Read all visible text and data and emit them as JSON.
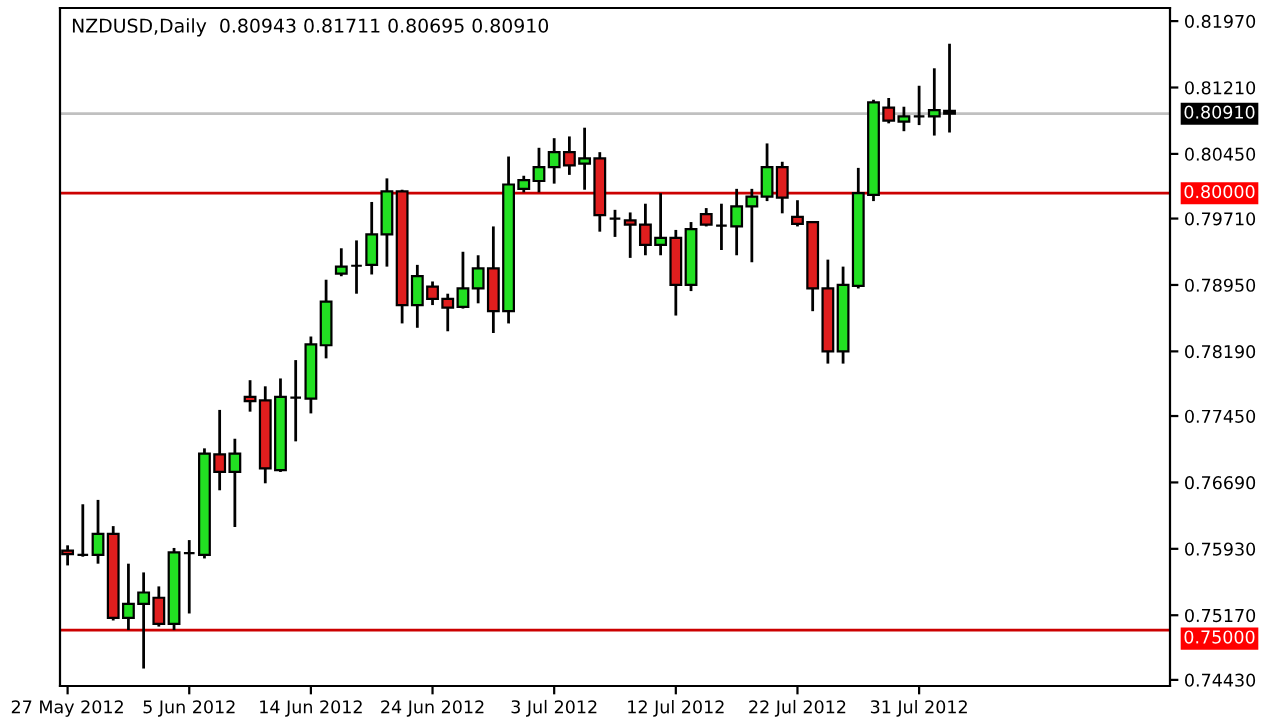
{
  "chart_data": {
    "type": "candlestick",
    "title": "NZDUSD,Daily  0.80943 0.81711 0.80695 0.80910",
    "categories": [
      "27 May 2012",
      null,
      null,
      null,
      null,
      null,
      null,
      null,
      "5 Jun 2012",
      null,
      null,
      null,
      null,
      null,
      null,
      null,
      "14 Jun 2012",
      null,
      null,
      null,
      null,
      null,
      null,
      null,
      "24 Jun 2012",
      null,
      null,
      null,
      null,
      null,
      null,
      null,
      "3 Jul 2012",
      null,
      null,
      null,
      null,
      null,
      null,
      null,
      "12 Jul 2012",
      null,
      null,
      null,
      null,
      null,
      null,
      null,
      "22 Jul 2012",
      null,
      null,
      null,
      null,
      null,
      null,
      null,
      "31 Jul 2012",
      null,
      null,
      null,
      null,
      null,
      null,
      null,
      null,
      null,
      null,
      null,
      null,
      null,
      null,
      null,
      null
    ],
    "ohlc": [
      [
        0.7591,
        0.7597,
        0.7574,
        0.7587
      ],
      [
        0.7586,
        0.7644,
        0.7584,
        0.7586
      ],
      [
        0.7586,
        0.7649,
        0.7576,
        0.761
      ],
      [
        0.761,
        0.7619,
        0.7511,
        0.7514
      ],
      [
        0.7514,
        0.7576,
        0.75,
        0.753
      ],
      [
        0.753,
        0.7566,
        0.7456,
        0.7543
      ],
      [
        0.7537,
        0.755,
        0.7504,
        0.7507
      ],
      [
        0.7507,
        0.7594,
        0.75,
        0.7589
      ],
      [
        0.7588,
        0.7603,
        0.7519,
        0.7588
      ],
      [
        0.7586,
        0.7708,
        0.7582,
        0.7702
      ],
      [
        0.7701,
        0.7752,
        0.766,
        0.7681
      ],
      [
        0.7681,
        0.7719,
        0.7618,
        0.7702
      ],
      [
        0.7767,
        0.7786,
        0.775,
        0.7762
      ],
      [
        0.7763,
        0.7779,
        0.7668,
        0.7685
      ],
      [
        0.7683,
        0.7788,
        0.7681,
        0.7767
      ],
      [
        0.7766,
        0.7809,
        0.7716,
        0.7766
      ],
      [
        0.7765,
        0.7836,
        0.7748,
        0.7827
      ],
      [
        0.7826,
        0.7901,
        0.7811,
        0.7876
      ],
      [
        0.7908,
        0.7937,
        0.7905,
        0.7916
      ],
      [
        0.7917,
        0.7946,
        0.7885,
        0.7917
      ],
      [
        0.7918,
        0.799,
        0.7907,
        0.7953
      ],
      [
        0.7953,
        0.8017,
        0.7916,
        0.8002
      ],
      [
        0.8002,
        0.8004,
        0.7851,
        0.7872
      ],
      [
        0.7872,
        0.7918,
        0.7846,
        0.7905
      ],
      [
        0.7893,
        0.7899,
        0.7872,
        0.7879
      ],
      [
        0.7879,
        0.7885,
        0.7842,
        0.7869
      ],
      [
        0.787,
        0.7933,
        0.7868,
        0.7891
      ],
      [
        0.7891,
        0.7929,
        0.7874,
        0.7914
      ],
      [
        0.7914,
        0.7962,
        0.784,
        0.7865
      ],
      [
        0.7865,
        0.8042,
        0.7851,
        0.801
      ],
      [
        0.8005,
        0.802,
        0.8001,
        0.8015
      ],
      [
        0.8014,
        0.8052,
        0.8001,
        0.803
      ],
      [
        0.803,
        0.8063,
        0.8011,
        0.8047
      ],
      [
        0.8047,
        0.8065,
        0.8021,
        0.8032
      ],
      [
        0.8034,
        0.8075,
        0.8004,
        0.804
      ],
      [
        0.804,
        0.8047,
        0.7956,
        0.7975
      ],
      [
        0.7971,
        0.7981,
        0.795,
        0.7971
      ],
      [
        0.7969,
        0.7978,
        0.7926,
        0.7964
      ],
      [
        0.7964,
        0.7988,
        0.7929,
        0.7941
      ],
      [
        0.7941,
        0.8,
        0.7929,
        0.7949
      ],
      [
        0.7949,
        0.7958,
        0.786,
        0.7895
      ],
      [
        0.7895,
        0.7967,
        0.7888,
        0.7959
      ],
      [
        0.7976,
        0.7983,
        0.7962,
        0.7964
      ],
      [
        0.7963,
        0.7988,
        0.7935,
        0.7963
      ],
      [
        0.7962,
        0.8005,
        0.7929,
        0.7985
      ],
      [
        0.7985,
        0.8005,
        0.7921,
        0.7996
      ],
      [
        0.7996,
        0.8057,
        0.7991,
        0.803
      ],
      [
        0.803,
        0.8036,
        0.7977,
        0.7995
      ],
      [
        0.7973,
        0.7992,
        0.7962,
        0.7965
      ],
      [
        0.7967,
        0.7967,
        0.7865,
        0.7891
      ],
      [
        0.7891,
        0.7924,
        0.7805,
        0.7819
      ],
      [
        0.7819,
        0.7916,
        0.7805,
        0.7895
      ],
      [
        0.7894,
        0.8029,
        0.7891,
        0.8
      ],
      [
        0.7998,
        0.8107,
        0.7991,
        0.8104
      ],
      [
        0.8098,
        0.8109,
        0.808,
        0.8083
      ],
      [
        0.8082,
        0.8099,
        0.8071,
        0.8088
      ],
      [
        0.8088,
        0.8123,
        0.8078,
        0.8088
      ],
      [
        0.8088,
        0.8143,
        0.8066,
        0.8095
      ],
      [
        0.80943,
        0.81711,
        0.80695,
        0.8091
      ],
      null,
      null,
      null,
      null,
      null,
      null,
      null,
      null,
      null,
      null,
      null,
      null,
      null,
      null
    ],
    "colors": [
      "#e01e1e",
      "#000000",
      "#22e022",
      "#e01e1e",
      "#22e022",
      "#22e022",
      "#e01e1e",
      "#22e022",
      "#000000",
      "#22e022",
      "#e01e1e",
      "#22e022",
      "#e01e1e",
      "#e01e1e",
      "#22e022",
      "#000000",
      "#22e022",
      "#22e022",
      "#22e022",
      "#000000",
      "#22e022",
      "#22e022",
      "#e01e1e",
      "#22e022",
      "#e01e1e",
      "#e01e1e",
      "#22e022",
      "#22e022",
      "#e01e1e",
      "#22e022",
      "#22e022",
      "#22e022",
      "#22e022",
      "#e01e1e",
      "#22e022",
      "#e01e1e",
      "#000000",
      "#e01e1e",
      "#e01e1e",
      "#22e022",
      "#e01e1e",
      "#22e022",
      "#e01e1e",
      "#000000",
      "#22e022",
      "#22e022",
      "#22e022",
      "#e01e1e",
      "#e01e1e",
      "#e01e1e",
      "#e01e1e",
      "#22e022",
      "#22e022",
      "#22e022",
      "#e01e1e",
      "#22e022",
      "#000000",
      "#22e022",
      "#000000",
      null,
      null,
      null,
      null,
      null,
      null,
      null,
      null,
      null,
      null,
      null,
      null,
      null,
      null
    ],
    "ylim": [
      0.7436,
      0.8212
    ],
    "yticks": [
      {
        "value": 0.8197,
        "label": "0.81970"
      },
      {
        "value": 0.8121,
        "label": "0.81210"
      },
      {
        "value": 0.8045,
        "label": "0.80450"
      },
      {
        "value": 0.7971,
        "label": "0.79710"
      },
      {
        "value": 0.7895,
        "label": "0.78950"
      },
      {
        "value": 0.7819,
        "label": "0.78190"
      },
      {
        "value": 0.7745,
        "label": "0.77450"
      },
      {
        "value": 0.7669,
        "label": "0.76690"
      },
      {
        "value": 0.7593,
        "label": "0.75930"
      },
      {
        "value": 0.7517,
        "label": "0.75170"
      },
      {
        "value": 0.7443,
        "label": "0.74430"
      }
    ],
    "ref_lines": [
      {
        "axis": "y",
        "value": 0.8,
        "label": "0.80000",
        "color": "#cc0000"
      },
      {
        "axis": "y",
        "value": 0.75,
        "label": "0.75000",
        "color": "#cc0000"
      },
      {
        "axis": "y",
        "value": 0.8091,
        "label": "0.80910",
        "color": "#c0c0c0"
      }
    ],
    "grid": false,
    "legend": false
  }
}
